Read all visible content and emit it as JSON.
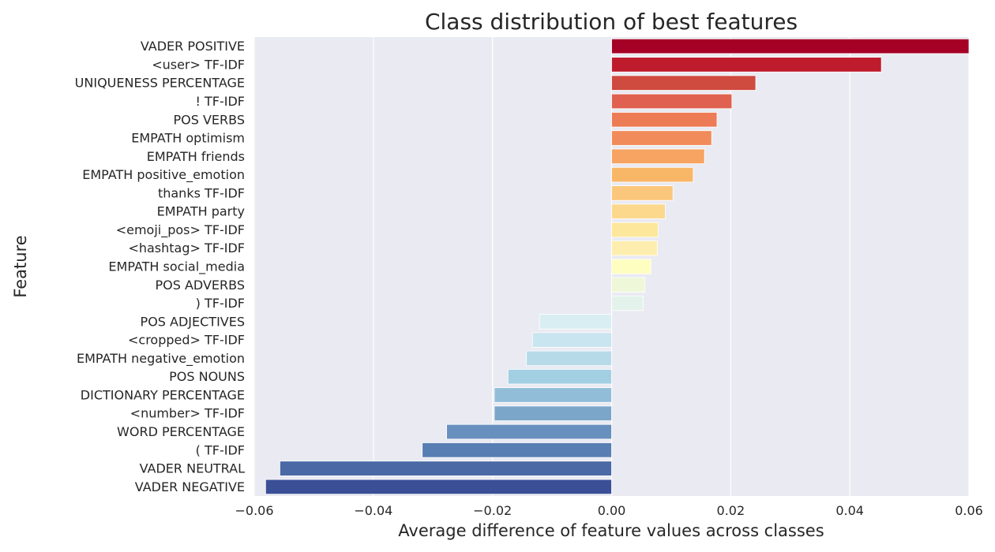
{
  "chart_data": {
    "type": "bar",
    "orientation": "horizontal",
    "title": "Class distribution of best features",
    "xlabel": "Average difference of feature values across classes",
    "ylabel": "Feature",
    "xlim": [
      -0.06,
      0.06
    ],
    "xticks": [
      "−0.06",
      "−0.04",
      "−0.02",
      "0.00",
      "0.02",
      "0.04",
      "0.06"
    ],
    "xtick_values": [
      -0.06,
      -0.04,
      -0.02,
      0.0,
      0.02,
      0.04,
      0.06
    ],
    "grid": true,
    "background": "#eaeaf2",
    "categories": [
      "VADER POSITIVE",
      "<user> TF-IDF",
      "UNIQUENESS PERCENTAGE",
      "! TF-IDF",
      "POS VERBS",
      "EMPATH optimism",
      "EMPATH friends",
      "EMPATH positive_emotion",
      "thanks TF-IDF",
      "EMPATH party",
      "<emoji_pos> TF-IDF",
      "<hashtag> TF-IDF",
      "EMPATH social_media",
      "POS ADVERBS",
      ") TF-IDF",
      "POS ADJECTIVES",
      "<cropped> TF-IDF",
      "EMPATH negative_emotion",
      "POS NOUNS",
      "DICTIONARY PERCENTAGE",
      "<number> TF-IDF",
      "WORD PERCENTAGE",
      "( TF-IDF",
      "VADER NEUTRAL",
      "VADER NEGATIVE"
    ],
    "values": [
      0.06,
      0.0453,
      0.0242,
      0.0202,
      0.0177,
      0.0168,
      0.0156,
      0.0137,
      0.0103,
      0.009,
      0.0078,
      0.0077,
      0.0066,
      0.0056,
      0.0053,
      -0.0121,
      -0.0133,
      -0.0143,
      -0.0174,
      -0.0197,
      -0.0197,
      -0.0277,
      -0.0318,
      -0.0557,
      -0.0581
    ],
    "colors": [
      "#a50026",
      "#be1c2c",
      "#cf4a3f",
      "#e06150",
      "#ec7b56",
      "#f18c5a",
      "#f7a361",
      "#f8b667",
      "#fac77c",
      "#fcd88d",
      "#fce79b",
      "#fdeeb0",
      "#fefec0",
      "#eef7d8",
      "#e3f3ec",
      "#d9eef3",
      "#c9e5ef",
      "#b7dae8",
      "#a3cfe3",
      "#92bdd9",
      "#7ba6ca",
      "#6890bf",
      "#587eb3",
      "#4a69a5",
      "#3b4f97"
    ]
  }
}
